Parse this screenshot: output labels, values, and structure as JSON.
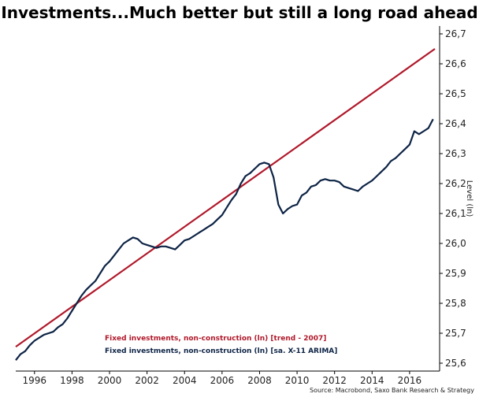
{
  "chart_data": {
    "type": "line",
    "title": "Investments...Much better but still a long road ahead",
    "ylabel": "Level (ln)",
    "xlabel": "",
    "x_ticks": [
      "1996",
      "1998",
      "2000",
      "2002",
      "2004",
      "2006",
      "2008",
      "2010",
      "2012",
      "2014",
      "2016"
    ],
    "y_ticks": [
      "25,6",
      "25,7",
      "25,8",
      "25,9",
      "26,0",
      "26,1",
      "26,2",
      "26,3",
      "26,4",
      "26,5",
      "26,6",
      "26,7"
    ],
    "xlim": [
      1995.0,
      2017.6
    ],
    "ylim": [
      25.6,
      26.7
    ],
    "grid": false,
    "legend_position": "bottom-left",
    "series": [
      {
        "name": "Fixed investments, non-construction (ln) [trend - 2007]",
        "color": "#b0182a",
        "x": [
          1995.0,
          2017.35
        ],
        "y": [
          25.655,
          26.65
        ]
      },
      {
        "name": "Fixed investments, non-construction (ln) [sa. X-11 ARIMA]",
        "color": "#0d2345",
        "x": [
          1995.0,
          1995.25,
          1995.5,
          1995.75,
          1996.0,
          1996.25,
          1996.5,
          1996.75,
          1997.0,
          1997.25,
          1997.5,
          1997.75,
          1998.0,
          1998.25,
          1998.5,
          1998.75,
          1999.0,
          1999.25,
          1999.5,
          1999.75,
          2000.0,
          2000.25,
          2000.5,
          2000.75,
          2001.0,
          2001.25,
          2001.5,
          2001.75,
          2002.0,
          2002.25,
          2002.5,
          2002.75,
          2003.0,
          2003.25,
          2003.5,
          2003.75,
          2004.0,
          2004.25,
          2004.5,
          2004.75,
          2005.0,
          2005.25,
          2005.5,
          2005.75,
          2006.0,
          2006.25,
          2006.5,
          2006.75,
          2007.0,
          2007.25,
          2007.5,
          2007.75,
          2008.0,
          2008.25,
          2008.5,
          2008.75,
          2009.0,
          2009.25,
          2009.5,
          2009.75,
          2010.0,
          2010.25,
          2010.5,
          2010.75,
          2011.0,
          2011.25,
          2011.5,
          2011.75,
          2012.0,
          2012.25,
          2012.5,
          2012.75,
          2013.0,
          2013.25,
          2013.5,
          2013.75,
          2014.0,
          2014.25,
          2014.5,
          2014.75,
          2015.0,
          2015.25,
          2015.5,
          2015.75,
          2016.0,
          2016.25,
          2016.5,
          2016.75,
          2017.0,
          2017.25
        ],
        "y": [
          25.61,
          25.63,
          25.64,
          25.66,
          25.675,
          25.685,
          25.695,
          25.7,
          25.705,
          25.72,
          25.73,
          25.75,
          25.775,
          25.8,
          25.825,
          25.845,
          25.86,
          25.875,
          25.9,
          25.925,
          25.94,
          25.96,
          25.98,
          26.0,
          26.01,
          26.02,
          26.015,
          26.0,
          25.995,
          25.99,
          25.985,
          25.99,
          25.99,
          25.985,
          25.98,
          25.995,
          26.01,
          26.015,
          26.025,
          26.035,
          26.045,
          26.055,
          26.065,
          26.08,
          26.095,
          26.12,
          26.145,
          26.165,
          26.2,
          26.225,
          26.235,
          26.25,
          26.265,
          26.27,
          26.265,
          26.22,
          26.13,
          26.1,
          26.115,
          26.125,
          26.13,
          26.16,
          26.17,
          26.19,
          26.195,
          26.21,
          26.215,
          26.21,
          26.21,
          26.205,
          26.19,
          26.185,
          26.18,
          26.175,
          26.19,
          26.2,
          26.21,
          26.225,
          26.24,
          26.255,
          26.275,
          26.285,
          26.3,
          26.315,
          26.33,
          26.375,
          26.365,
          26.375,
          26.385,
          26.415
        ]
      }
    ]
  },
  "source": "Source: Macrobond, Saxo Bank Research & Strategy"
}
